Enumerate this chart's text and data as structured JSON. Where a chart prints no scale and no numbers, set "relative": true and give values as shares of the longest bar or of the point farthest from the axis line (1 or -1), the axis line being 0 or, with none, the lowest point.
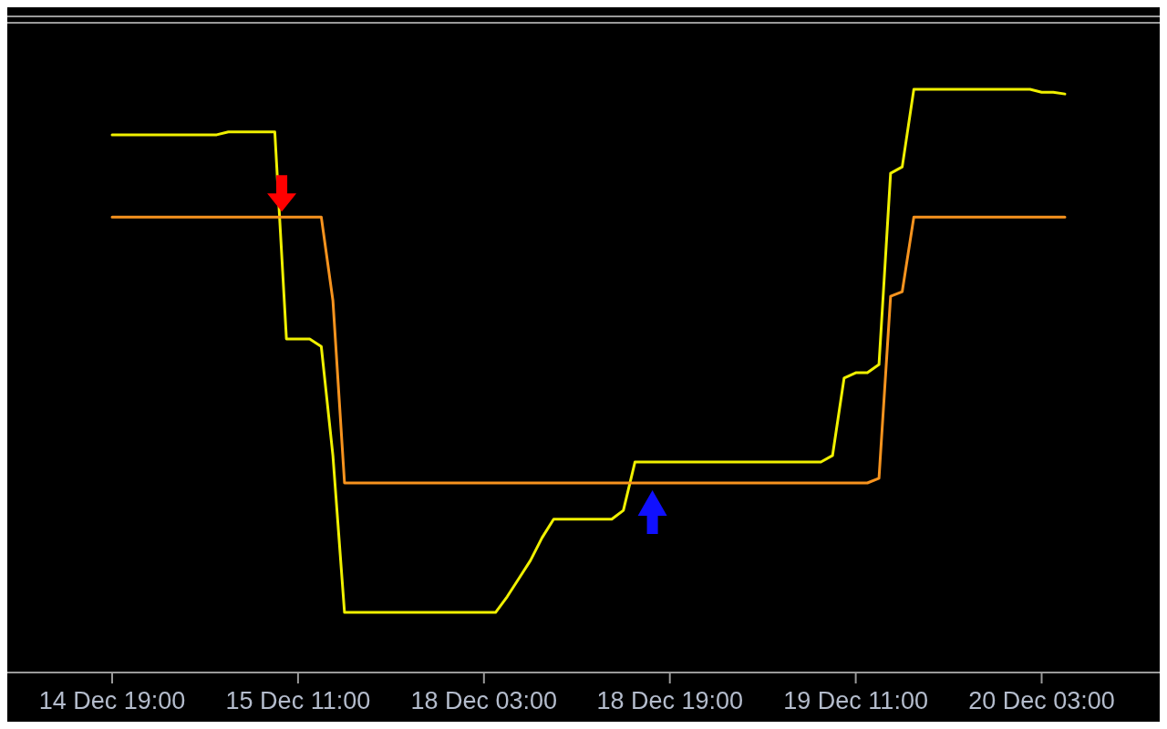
{
  "chart_data": {
    "type": "line",
    "relative": true,
    "grid": false,
    "line_style": "solid",
    "categories": [
      "14 Dec 19:00",
      null,
      null,
      null,
      null,
      null,
      null,
      null,
      null,
      null,
      null,
      null,
      null,
      null,
      null,
      null,
      "15 Dec 11:00",
      null,
      null,
      null,
      null,
      null,
      null,
      null,
      null,
      null,
      null,
      null,
      null,
      null,
      null,
      null,
      "18 Dec 03:00",
      null,
      null,
      null,
      null,
      null,
      null,
      null,
      null,
      null,
      null,
      null,
      null,
      null,
      null,
      null,
      "18 Dec 19:00",
      null,
      null,
      null,
      null,
      null,
      null,
      null,
      null,
      null,
      null,
      null,
      null,
      null,
      null,
      null,
      "19 Dec 11:00",
      null,
      null,
      null,
      null,
      null,
      null,
      null,
      null,
      null,
      null,
      null,
      null,
      null,
      null,
      null,
      "20 Dec 03:00",
      null,
      null
    ],
    "series": [
      {
        "color": "#f0f000",
        "values": [
          0.922,
          0.922,
          0.922,
          0.922,
          0.922,
          0.922,
          0.922,
          0.922,
          0.922,
          0.922,
          0.927,
          0.927,
          0.927,
          0.927,
          0.927,
          0.572,
          0.572,
          0.572,
          0.559,
          0.372,
          0.103,
          0.103,
          0.103,
          0.103,
          0.103,
          0.103,
          0.103,
          0.103,
          0.103,
          0.103,
          0.103,
          0.103,
          0.103,
          0.103,
          0.13,
          0.161,
          0.192,
          0.231,
          0.263,
          0.263,
          0.263,
          0.263,
          0.263,
          0.263,
          0.278,
          0.361,
          0.361,
          0.361,
          0.361,
          0.361,
          0.361,
          0.361,
          0.361,
          0.361,
          0.361,
          0.361,
          0.361,
          0.361,
          0.361,
          0.361,
          0.361,
          0.361,
          0.372,
          0.505,
          0.514,
          0.514,
          0.528,
          0.856,
          0.867,
          1,
          1,
          1,
          1,
          1,
          1,
          1,
          1,
          1,
          1,
          1,
          0.995,
          0.995,
          0.992
        ]
      },
      {
        "color": "#f7931e",
        "values": [
          0.781,
          0.781,
          0.781,
          0.781,
          0.781,
          0.781,
          0.781,
          0.781,
          0.781,
          0.781,
          0.781,
          0.781,
          0.781,
          0.781,
          0.781,
          0.781,
          0.781,
          0.781,
          0.781,
          0.638,
          0.325,
          0.325,
          0.325,
          0.325,
          0.325,
          0.325,
          0.325,
          0.325,
          0.325,
          0.325,
          0.325,
          0.325,
          0.325,
          0.325,
          0.325,
          0.325,
          0.325,
          0.325,
          0.325,
          0.325,
          0.325,
          0.325,
          0.325,
          0.325,
          0.325,
          0.325,
          0.325,
          0.325,
          0.325,
          0.325,
          0.325,
          0.325,
          0.325,
          0.325,
          0.325,
          0.325,
          0.325,
          0.325,
          0.325,
          0.325,
          0.325,
          0.325,
          0.325,
          0.325,
          0.325,
          0.325,
          0.333,
          0.645,
          0.653,
          0.781,
          0.781,
          0.781,
          0.781,
          0.781,
          0.781,
          0.781,
          0.781,
          0.781,
          0.781,
          0.781,
          0.781,
          0.781,
          0.781
        ]
      }
    ]
  }
}
